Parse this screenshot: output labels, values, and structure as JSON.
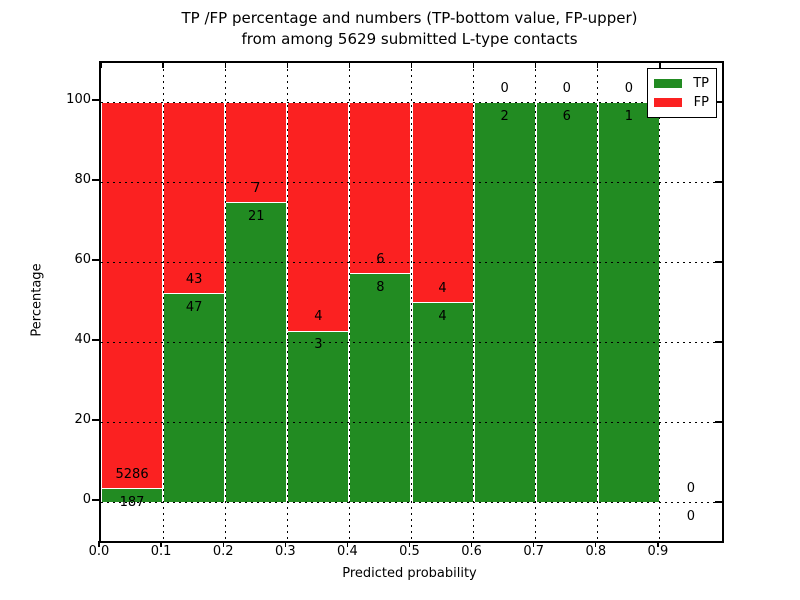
{
  "title": {
    "line1": "TP /FP percentage and numbers (TP-bottom value, FP-upper)",
    "line2": "from among 5629 submitted L-type contacts"
  },
  "axes": {
    "xlabel": "Predicted probability",
    "ylabel": "Percentage",
    "x_ticks": [
      "0.0",
      "0.1",
      "0.2",
      "0.3",
      "0.4",
      "0.5",
      "0.6",
      "0.7",
      "0.8",
      "0.9"
    ],
    "x_tick_values": [
      0.0,
      0.1,
      0.2,
      0.3,
      0.4,
      0.5,
      0.6,
      0.7,
      0.8,
      0.9
    ],
    "y_ticks": [
      "0",
      "20",
      "40",
      "60",
      "80",
      "100"
    ],
    "y_tick_values": [
      0,
      20,
      40,
      60,
      80,
      100
    ],
    "xlim": [
      0.0,
      1.0
    ],
    "ylim": [
      -10,
      110
    ],
    "grid": "dotted"
  },
  "legend": {
    "position": "upper-right",
    "items": [
      {
        "label": "TP",
        "color": "#228b22"
      },
      {
        "label": "FP",
        "color": "#fb2121"
      }
    ]
  },
  "colors": {
    "tp": "#228b22",
    "fp": "#fb2121",
    "background": "#ffffff",
    "grid": "#000000"
  },
  "chart_data": {
    "type": "bar",
    "stacked": true,
    "title": "TP /FP percentage and numbers (TP-bottom value, FP-upper) from among 5629 submitted L-type contacts",
    "xlabel": "Predicted probability",
    "ylabel": "Percentage",
    "total_contacts": 5629,
    "bin_width": 0.1,
    "series_order": [
      "TP (bottom, green)",
      "FP (top, red)"
    ],
    "bins": [
      {
        "range": [
          0.0,
          0.1
        ],
        "tp": 187,
        "fp": 5286,
        "tp_pct": 3.42,
        "fp_pct": 96.58,
        "has_bar": true
      },
      {
        "range": [
          0.1,
          0.2
        ],
        "tp": 47,
        "fp": 43,
        "tp_pct": 52.22,
        "fp_pct": 47.78,
        "has_bar": true
      },
      {
        "range": [
          0.2,
          0.3
        ],
        "tp": 21,
        "fp": 7,
        "tp_pct": 75.0,
        "fp_pct": 25.0,
        "has_bar": true
      },
      {
        "range": [
          0.3,
          0.4
        ],
        "tp": 3,
        "fp": 4,
        "tp_pct": 42.86,
        "fp_pct": 57.14,
        "has_bar": true
      },
      {
        "range": [
          0.4,
          0.5
        ],
        "tp": 8,
        "fp": 6,
        "tp_pct": 57.14,
        "fp_pct": 42.86,
        "has_bar": true
      },
      {
        "range": [
          0.5,
          0.6
        ],
        "tp": 4,
        "fp": 4,
        "tp_pct": 50.0,
        "fp_pct": 50.0,
        "has_bar": true
      },
      {
        "range": [
          0.6,
          0.7
        ],
        "tp": 2,
        "fp": 0,
        "tp_pct": 100.0,
        "fp_pct": 0.0,
        "has_bar": true
      },
      {
        "range": [
          0.7,
          0.8
        ],
        "tp": 6,
        "fp": 0,
        "tp_pct": 100.0,
        "fp_pct": 0.0,
        "has_bar": true
      },
      {
        "range": [
          0.8,
          0.9
        ],
        "tp": 1,
        "fp": 0,
        "tp_pct": 100.0,
        "fp_pct": 0.0,
        "has_bar": true
      },
      {
        "range": [
          0.9,
          1.0
        ],
        "tp": 0,
        "fp": 0,
        "tp_pct": 0.0,
        "fp_pct": 0.0,
        "has_bar": false
      }
    ]
  }
}
